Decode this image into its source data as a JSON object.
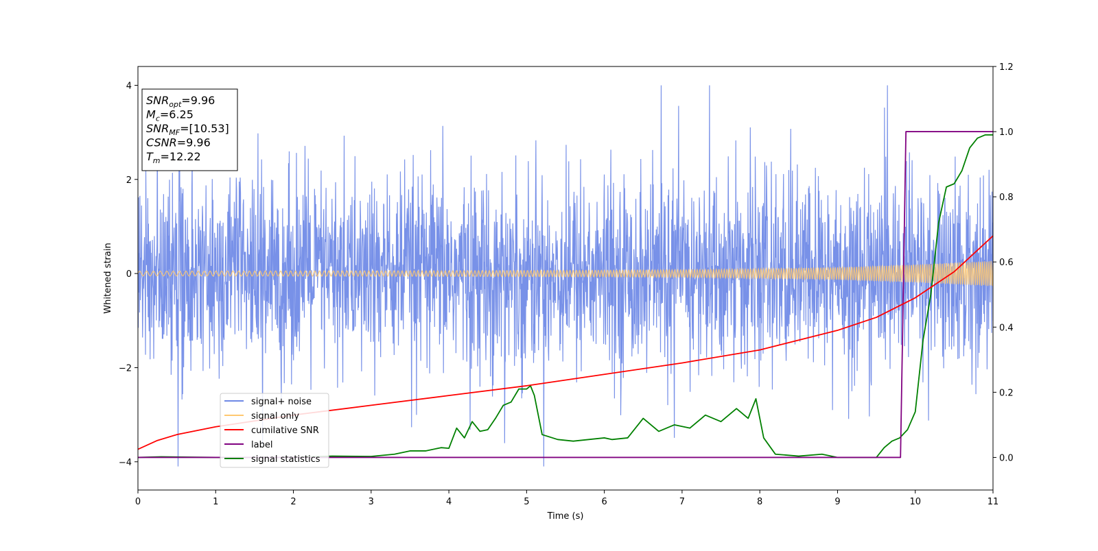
{
  "chart_data": {
    "type": "line",
    "xlabel": "Time (s)",
    "ylabel": "Whitened strain",
    "ylabel_right": "",
    "xlim": [
      0,
      11
    ],
    "ylim": [
      -4.6,
      4.4
    ],
    "ylim_right": [
      -0.1,
      1.2
    ],
    "x_ticks": [
      "0",
      "1",
      "2",
      "3",
      "4",
      "5",
      "6",
      "7",
      "8",
      "9",
      "10",
      "11"
    ],
    "y_ticks": [
      "−4",
      "−2",
      "0",
      "2",
      "4"
    ],
    "y_ticks_right": [
      "0.0",
      "0.2",
      "0.4",
      "0.6",
      "0.8",
      "1.0",
      "1.2"
    ],
    "grid": false,
    "legend_position": "lower left",
    "info_box": {
      "lines": [
        {
          "sym": "SNR",
          "sub": "opt",
          "val": "=9.96"
        },
        {
          "sym": "M",
          "sub": "c",
          "val": "=6.25"
        },
        {
          "sym": "SNR",
          "sub": "MF",
          "val": "=[10.53]"
        },
        {
          "sym": "CSNR",
          "sub": "",
          "val": "=9.96"
        },
        {
          "sym": "T",
          "sub": "m",
          "val": "=12.22"
        }
      ]
    },
    "series": [
      {
        "name": "signal+ noise",
        "axis": "left",
        "color": "#6d88e6",
        "description_values": "dense noise approx ±2.5 with spikes to ±4"
      },
      {
        "name": "signal only",
        "axis": "left",
        "color": "#ffc870",
        "x": [
          0,
          2,
          4,
          6,
          7,
          8,
          9,
          10,
          11
        ],
        "amplitude": [
          0.05,
          0.055,
          0.06,
          0.07,
          0.08,
          0.1,
          0.13,
          0.19,
          0.27
        ]
      },
      {
        "name": "cumilative SNR",
        "axis": "right",
        "color": "#ff0000",
        "x": [
          0,
          0.25,
          0.5,
          1,
          2,
          3,
          4,
          5,
          6,
          7,
          8,
          9,
          9.5,
          10,
          10.5,
          11
        ],
        "y": [
          0.025,
          0.052,
          0.07,
          0.094,
          0.13,
          0.16,
          0.19,
          0.22,
          0.255,
          0.29,
          0.33,
          0.39,
          0.43,
          0.49,
          0.57,
          0.68
        ]
      },
      {
        "name": "label",
        "axis": "right",
        "color": "#800080",
        "x": [
          0,
          9.81,
          9.88,
          11
        ],
        "y": [
          0,
          0,
          1,
          1
        ]
      },
      {
        "name": "signal statistics",
        "axis": "right",
        "color": "#008000",
        "x": [
          0,
          0.3,
          1,
          2,
          2.5,
          3,
          3.3,
          3.5,
          3.7,
          3.9,
          4.0,
          4.1,
          4.2,
          4.3,
          4.4,
          4.5,
          4.6,
          4.7,
          4.8,
          4.9,
          5.0,
          5.05,
          5.1,
          5.2,
          5.4,
          5.6,
          5.8,
          6.0,
          6.1,
          6.3,
          6.5,
          6.7,
          6.9,
          7.1,
          7.3,
          7.5,
          7.7,
          7.85,
          7.95,
          8.05,
          8.2,
          8.5,
          8.8,
          9.0,
          9.5,
          9.6,
          9.7,
          9.8,
          9.9,
          10.0,
          10.1,
          10.2,
          10.3,
          10.4,
          10.5,
          10.6,
          10.7,
          10.8,
          10.9,
          11.0
        ],
        "y": [
          0,
          0.002,
          0.0,
          0.0,
          0.004,
          0.003,
          0.01,
          0.02,
          0.02,
          0.03,
          0.028,
          0.09,
          0.06,
          0.11,
          0.08,
          0.085,
          0.12,
          0.16,
          0.17,
          0.21,
          0.21,
          0.22,
          0.19,
          0.07,
          0.055,
          0.05,
          0.055,
          0.06,
          0.055,
          0.06,
          0.12,
          0.08,
          0.1,
          0.09,
          0.13,
          0.11,
          0.15,
          0.12,
          0.18,
          0.06,
          0.01,
          0.004,
          0.01,
          0.0,
          0.0,
          0.03,
          0.05,
          0.06,
          0.085,
          0.14,
          0.36,
          0.5,
          0.72,
          0.83,
          0.84,
          0.88,
          0.95,
          0.98,
          0.99,
          0.99
        ]
      }
    ]
  }
}
